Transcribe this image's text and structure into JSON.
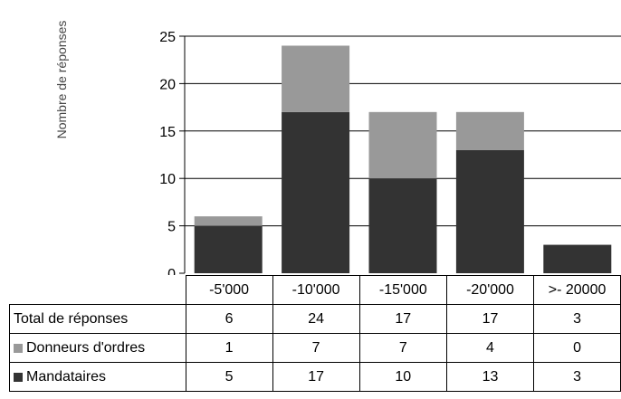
{
  "chart_data": {
    "type": "bar",
    "stacked": true,
    "ylabel": "Nombre de réponses",
    "ylim": [
      0,
      25
    ],
    "yticks": [
      "0",
      "5",
      "10",
      "15",
      "20",
      "25"
    ],
    "grid": true,
    "categories": [
      "-5'000",
      "-10'000",
      "-15'000",
      "-20'000",
      ">- 20000"
    ],
    "series": [
      {
        "name": "Mandataires",
        "values": [
          5,
          17,
          10,
          13,
          3
        ],
        "color": "#333333"
      },
      {
        "name": "Donneurs d'ordres",
        "values": [
          1,
          7,
          7,
          4,
          0
        ],
        "color": "#999999"
      }
    ],
    "table": {
      "total_label": "Total de réponses",
      "totals": [
        6,
        24,
        17,
        17,
        3
      ]
    }
  }
}
